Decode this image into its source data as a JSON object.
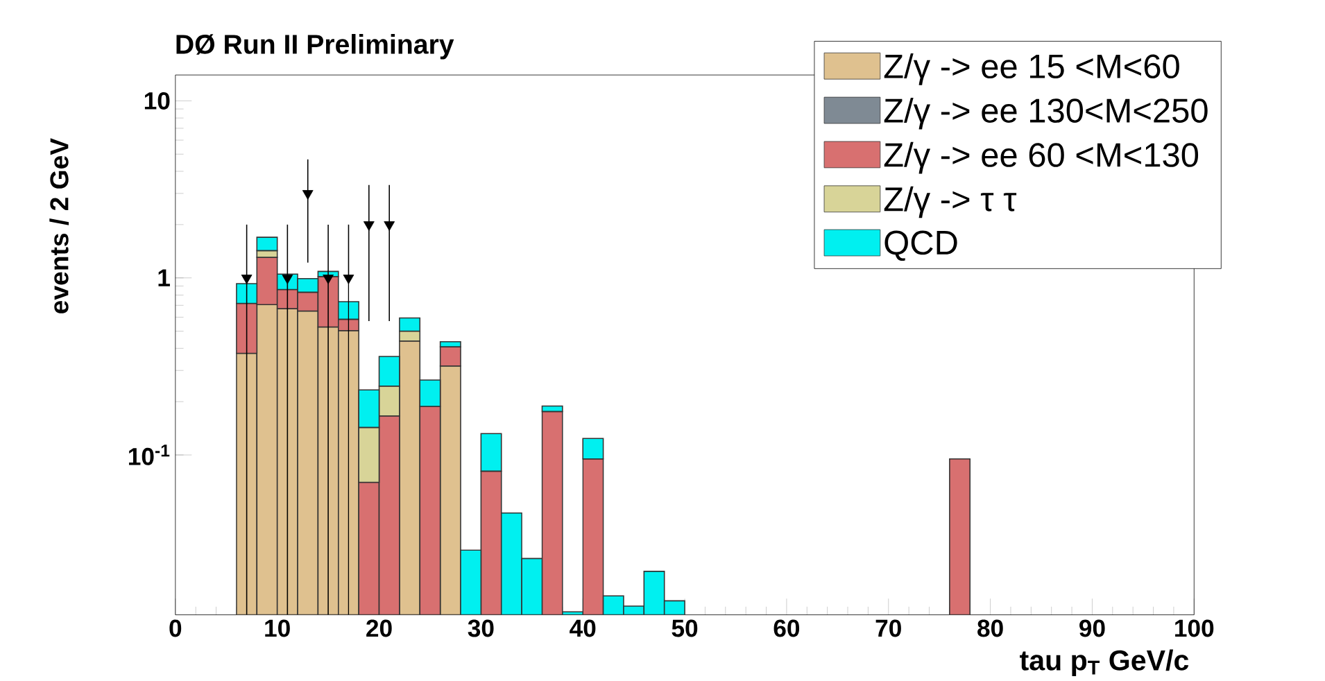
{
  "chart_data": {
    "type": "bar",
    "title": "DØ Run II Preliminary",
    "xlabel": "tau p$_{T}$ GeV/c",
    "ylabel": "events / 2 GeV",
    "x": [
      7,
      9,
      11,
      13,
      15,
      17,
      19,
      21,
      23,
      25,
      27,
      29,
      31,
      33,
      35,
      37,
      39,
      41,
      43,
      45,
      47,
      49,
      77
    ],
    "stacked": true,
    "log": "y",
    "legend": "top right",
    "xlim": [
      0,
      100
    ],
    "xticks": [
      0,
      10,
      20,
      30,
      40,
      50,
      60,
      70,
      80,
      90,
      100
    ],
    "ylim": [
      0.0125,
      14
    ],
    "yticks": [
      {
        "value": 0.1,
        "label": "10$^{-1}$"
      },
      1,
      10
    ],
    "series": [
      {
        "name": "Z/γ -> ee 15 <M<60",
        "color": "#dfc18f",
        "values": [
          0.375,
          0.706,
          0.67,
          0.65,
          0.528,
          0.504,
          null,
          null,
          0.44,
          null,
          0.318,
          null,
          null,
          null,
          null,
          null,
          null,
          null,
          null,
          null,
          null,
          null,
          null
        ]
      },
      {
        "name": "Z/γ -> ee 130<M<250",
        "color": "#7f8a94",
        "values": [
          null,
          null,
          null,
          null,
          null,
          null,
          null,
          null,
          null,
          null,
          null,
          null,
          null,
          null,
          null,
          null,
          null,
          null,
          null,
          null,
          null,
          null,
          null
        ]
      },
      {
        "name": "Z/γ -> ee 60 <M<130",
        "color": "#d87070",
        "values": [
          0.343,
          0.6,
          0.19,
          0.18,
          0.49,
          0.08,
          0.07,
          0.166,
          null,
          0.188,
          0.09,
          null,
          0.081,
          null,
          null,
          0.176,
          null,
          0.095,
          null,
          null,
          null,
          null,
          0.095
        ]
      },
      {
        "name": "Z/γ -> τ τ",
        "color": "#d8d498",
        "values": [
          null,
          0.12,
          null,
          null,
          null,
          null,
          0.073,
          0.079,
          0.06,
          null,
          null,
          null,
          null,
          null,
          null,
          null,
          null,
          null,
          null,
          null,
          null,
          null,
          null
        ]
      },
      {
        "name": "QCD",
        "color": "#00f0f0",
        "values": [
          0.21,
          0.27,
          0.19,
          0.16,
          0.07,
          0.15,
          0.09,
          0.115,
          0.094,
          0.077,
          0.028,
          0.029,
          0.051,
          0.047,
          0.026,
          0.013,
          0.013,
          0.029,
          0.016,
          0.014,
          0.022,
          0.015,
          null
        ]
      },
      {
        "type": "scatter",
        "color": "#000000",
        "marker": "triangle",
        "x": [
          7,
          11,
          13,
          15,
          17,
          19,
          21
        ],
        "values": [
          1,
          1,
          3,
          1,
          1,
          2,
          2
        ],
        "errors": [
          [
            0.0125,
            2
          ],
          [
            0.0125,
            2
          ],
          [
            1.22,
            4.67
          ],
          [
            0.0125,
            2
          ],
          [
            0.0125,
            2
          ],
          [
            0.57,
            3.35
          ],
          [
            0.57,
            3.35
          ]
        ]
      }
    ]
  }
}
